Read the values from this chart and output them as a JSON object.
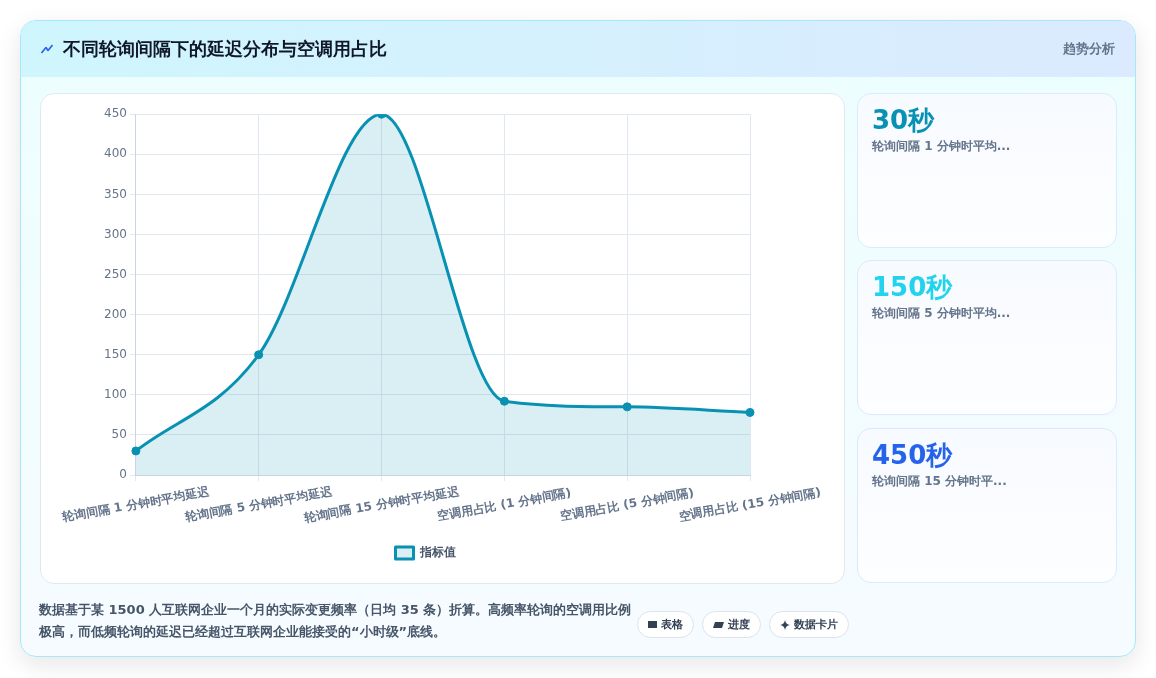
{
  "chart_data": [
    {
      "type": "area",
      "title": "不同轮询间隔下的延迟分布与空调用占比",
      "categories": [
        "轮询间隔 1 分钟时平均延迟",
        "轮询间隔 5 分钟时平均延迟",
        "轮询间隔 15 分钟时平均延迟",
        "空调用占比 (1 分钟间隔)",
        "空调用占比 (5 分钟间隔)",
        "空调用占比 (15 分钟间隔)"
      ],
      "series": [
        {
          "name": "指标值",
          "color": "#0891b2",
          "values": [
            30,
            150,
            450,
            92,
            85,
            78
          ]
        }
      ],
      "ylim": [
        0,
        450
      ],
      "yticks": [
        0,
        50,
        100,
        150,
        200,
        250,
        300,
        350,
        400,
        450
      ],
      "grid": true,
      "legend": "bottom",
      "marker": "circle",
      "line_style": "solid",
      "annotations": [
        "趋势分析",
        "数据基于某 1500 人互联网企业一个月的实际变更频率（日均 35 条）折算。高频率轮询的空调用比例极高，而低频轮询的延迟已经超过互联网企业能接受的“小时级”底线。",
        "表格",
        "进度",
        "数据卡片"
      ]
    },
    {
      "type": "other",
      "title": "30秒",
      "subtitle": "轮询间隔 1 分钟时平均...",
      "color": "#0891b2"
    },
    {
      "type": "other",
      "title": "150秒",
      "subtitle": "轮询间隔 5 分钟时平均...",
      "color": "#22d3ee"
    },
    {
      "type": "other",
      "title": "450秒",
      "subtitle": "轮询间隔 15 分钟时平...",
      "color": "#2563eb"
    }
  ]
}
